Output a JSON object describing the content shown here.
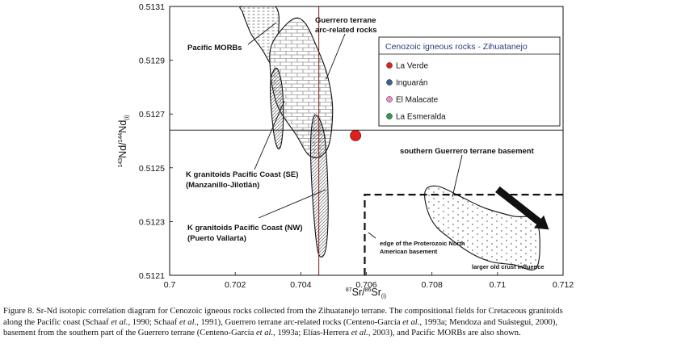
{
  "chart_data": {
    "type": "scatter",
    "x_axis": {
      "label_parts": [
        "87",
        "Sr/",
        "86",
        "Sr",
        "(i)"
      ],
      "range": [
        0.7,
        0.712
      ],
      "ticks": [
        {
          "value": 0.7,
          "label": "0.7"
        },
        {
          "value": 0.702,
          "label": "0.702"
        },
        {
          "value": 0.704,
          "label": "0.704"
        },
        {
          "value": 0.706,
          "label": "0.706"
        },
        {
          "value": 0.708,
          "label": "0.708"
        },
        {
          "value": 0.71,
          "label": "0.71"
        },
        {
          "value": 0.712,
          "label": "0.712"
        }
      ]
    },
    "y_axis": {
      "label_parts": [
        "143",
        "Nd/",
        "144",
        "Nd",
        "(i)"
      ],
      "range": [
        0.5121,
        0.5131
      ],
      "ticks": [
        {
          "value": 0.5121,
          "label": "0.5121"
        },
        {
          "value": 0.5123,
          "label": "0.5123"
        },
        {
          "value": 0.5125,
          "label": "0.5125"
        },
        {
          "value": 0.5127,
          "label": "0.5127"
        },
        {
          "value": 0.5129,
          "label": "0.5129"
        },
        {
          "value": 0.5131,
          "label": "0.5131"
        }
      ]
    },
    "reference_lines": {
      "vertical_x": 0.70455,
      "horizontal_y": 0.51264
    },
    "points": [
      {
        "series": "La Verde",
        "x": 0.70567,
        "y": 0.51262,
        "color": "#e0201b"
      }
    ],
    "legend": {
      "title": "Cenozoic igneous rocks - Zihuatanejo",
      "position": "top-right",
      "items": [
        {
          "label": "La Verde",
          "color": "#e0201b"
        },
        {
          "label": "Inguarán",
          "color": "#3d5f8c"
        },
        {
          "label": "El Malacate",
          "color": "#ee8ccd"
        },
        {
          "label": "La Esmeralda",
          "color": "#2e9a4e"
        }
      ]
    },
    "fields": [
      {
        "name": "Pacific MORBs",
        "pattern": "dashes",
        "outline": [
          [
            0.70222,
            0.5131
          ],
          [
            0.70322,
            0.5131
          ],
          [
            0.70332,
            0.51299
          ],
          [
            0.70325,
            0.5129
          ],
          [
            0.70312,
            0.51288
          ],
          [
            0.70282,
            0.51294
          ],
          [
            0.70252,
            0.51299
          ],
          [
            0.70237,
            0.51303
          ],
          [
            0.70222,
            0.51308
          ]
        ]
      },
      {
        "name": "Guerrero terrane arc-related rocks",
        "pattern": "bricks",
        "outline": [
          [
            0.70312,
            0.51296
          ],
          [
            0.70372,
            0.51305
          ],
          [
            0.70412,
            0.51304
          ],
          [
            0.70452,
            0.51294
          ],
          [
            0.70482,
            0.51284
          ],
          [
            0.70497,
            0.51272
          ],
          [
            0.70487,
            0.51259
          ],
          [
            0.70457,
            0.51254
          ],
          [
            0.70422,
            0.51255
          ],
          [
            0.70387,
            0.51262
          ],
          [
            0.70337,
            0.51271
          ],
          [
            0.70317,
            0.51278
          ],
          [
            0.70307,
            0.51286
          ]
        ]
      },
      {
        "name": "K granitoids Pacific Coast (SE)",
        "pattern": "diagonal",
        "outline": [
          [
            0.7031,
            0.51284
          ],
          [
            0.70327,
            0.51287
          ],
          [
            0.70342,
            0.51281
          ],
          [
            0.70347,
            0.5127
          ],
          [
            0.70342,
            0.5126
          ],
          [
            0.70332,
            0.51257
          ],
          [
            0.7032,
            0.51261
          ],
          [
            0.70312,
            0.51269
          ],
          [
            0.70307,
            0.51278
          ]
        ]
      },
      {
        "name": "K granitoids Pacific Coast (NW)",
        "pattern": "diagonal",
        "outline": [
          [
            0.70437,
            0.51268
          ],
          [
            0.70452,
            0.51269
          ],
          [
            0.70472,
            0.51262
          ],
          [
            0.70482,
            0.51245
          ],
          [
            0.70482,
            0.51227
          ],
          [
            0.70472,
            0.51218
          ],
          [
            0.70452,
            0.51219
          ],
          [
            0.70437,
            0.51237
          ],
          [
            0.7043,
            0.51257
          ]
        ]
      },
      {
        "name": "southern Guerrero terrane basement",
        "pattern": "dots",
        "outline": [
          [
            0.70782,
            0.51242
          ],
          [
            0.70822,
            0.51243
          ],
          [
            0.70892,
            0.51239
          ],
          [
            0.70962,
            0.51235
          ],
          [
            0.71047,
            0.51232
          ],
          [
            0.7112,
            0.5123
          ],
          [
            0.7112,
            0.51213
          ],
          [
            0.71047,
            0.51214
          ],
          [
            0.70982,
            0.51215
          ],
          [
            0.70922,
            0.51218
          ],
          [
            0.70852,
            0.51224
          ],
          [
            0.70807,
            0.51229
          ],
          [
            0.70782,
            0.51236
          ]
        ]
      }
    ],
    "boundary": {
      "label": "edge of the Proterozoic North American basement",
      "x_from": 0.70595,
      "y_top": 0.5124
    },
    "arrow": {
      "label": "larger old crust influence",
      "from": [
        0.71,
        0.51242
      ],
      "to": [
        0.71157,
        0.51227
      ]
    },
    "labels": {
      "morb": "Pacific MORBs",
      "guerrero_line1": "Guerrero terrane",
      "guerrero_line2": "arc-related rocks",
      "k_se_line1": "K granitoids Pacific Coast (SE)",
      "k_se_line2": "(Manzanillo-Jilotlán)",
      "k_nw_line1": "K granitoids Pacific Coast (NW)",
      "k_nw_line2": "(Puerto Vallarta)",
      "basement": "southern Guerrero terrane basement",
      "edge_line1": "edge of the Proterozoic North",
      "edge_line2": "American basement",
      "old_crust": "larger old crust influence"
    }
  },
  "caption": {
    "line1": "Figure 8. Sr-Nd isotopic correlation diagram for Cenozoic igneous rocks collected from the Zihuatanejo terrane. The compositional fields for Cretaceous granitoids",
    "line2_parts": [
      "along the Pacific coast (Schaaf ",
      "et al.",
      ", 1990; Schaaf ",
      "et al.",
      ", 1991), Guerrero terrane arc-related rocks (Centeno-García ",
      "et al.",
      ", 1993a; Mendoza and Suástegui, 2000),"
    ],
    "line3_parts": [
      "basement from the southern part of the Guerrero terrane (Centeno-García ",
      "et al.",
      ", 1993a; Elías-Herrera ",
      "et al.",
      ", 2003), and Pacific MORBs are also shown."
    ]
  }
}
